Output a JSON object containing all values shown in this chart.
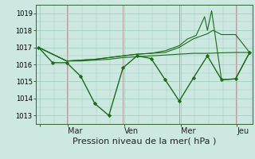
{
  "background_color": "#cce8e0",
  "grid_color": "#99ccbb",
  "line_color": "#1a6b1a",
  "marker_color": "#1a6b1a",
  "xlabel_text": "Pression niveau de la mer( hPa )",
  "ylim": [
    1012.5,
    1019.5
  ],
  "xlim": [
    -0.1,
    7.6
  ],
  "yticks": [
    1013,
    1014,
    1015,
    1016,
    1017,
    1018,
    1019
  ],
  "day_tick_positions": [
    0.05,
    1.05,
    3.05,
    5.05,
    7.05
  ],
  "day_tick_labels": [
    "",
    "Mar",
    "Ven",
    "Mer",
    "Jeu"
  ],
  "series": [
    {
      "x": [
        0.0,
        0.5,
        1.0,
        1.5,
        2.0,
        2.5,
        3.0,
        3.5,
        4.0,
        4.5,
        5.0,
        5.5,
        6.0,
        6.5,
        7.0,
        7.5
      ],
      "y": [
        1017.0,
        1016.1,
        1016.1,
        1015.3,
        1013.7,
        1013.0,
        1015.8,
        1016.5,
        1016.35,
        1015.1,
        1013.85,
        1015.2,
        1016.5,
        1015.1,
        1015.15,
        1016.7
      ],
      "marker": true,
      "lw": 1.0
    },
    {
      "x": [
        0.0,
        0.5,
        1.0,
        1.5,
        2.0,
        2.5,
        3.0,
        3.5,
        4.0,
        4.5,
        5.0,
        5.5,
        6.0,
        6.5,
        7.0,
        7.5
      ],
      "y": [
        1017.0,
        1016.6,
        1016.2,
        1016.2,
        1016.25,
        1016.3,
        1016.4,
        1016.45,
        1016.5,
        1016.55,
        1016.6,
        1016.65,
        1016.65,
        1016.68,
        1016.7,
        1016.7
      ],
      "marker": false,
      "lw": 0.8
    },
    {
      "x": [
        0.0,
        0.5,
        1.0,
        1.5,
        2.0,
        2.5,
        3.0,
        3.5,
        4.0,
        4.5,
        5.0,
        5.5,
        6.0,
        6.2,
        6.5,
        7.0,
        7.5
      ],
      "y": [
        1017.0,
        1016.6,
        1016.2,
        1016.25,
        1016.3,
        1016.4,
        1016.5,
        1016.6,
        1016.65,
        1016.7,
        1017.0,
        1017.5,
        1017.8,
        1018.0,
        1017.75,
        1017.75,
        1016.7
      ],
      "marker": false,
      "lw": 0.8
    },
    {
      "x": [
        0.0,
        0.5,
        1.0,
        1.5,
        2.0,
        2.5,
        3.0,
        3.5,
        4.0,
        4.5,
        5.0,
        5.3,
        5.6,
        5.9,
        6.0,
        6.15,
        6.5,
        7.0,
        7.5
      ],
      "y": [
        1017.0,
        1016.6,
        1016.2,
        1016.25,
        1016.3,
        1016.4,
        1016.5,
        1016.6,
        1016.65,
        1016.8,
        1017.1,
        1017.5,
        1017.7,
        1018.8,
        1018.0,
        1019.15,
        1015.1,
        1015.15,
        1016.7
      ],
      "marker": false,
      "lw": 0.8
    }
  ],
  "vlines": [
    1.0,
    3.0,
    5.0,
    7.0
  ],
  "vline_color": "#bb9999",
  "tick_color": "#336633",
  "ytick_fontsize": 6,
  "xtick_fontsize": 7,
  "xlabel_fontsize": 8
}
